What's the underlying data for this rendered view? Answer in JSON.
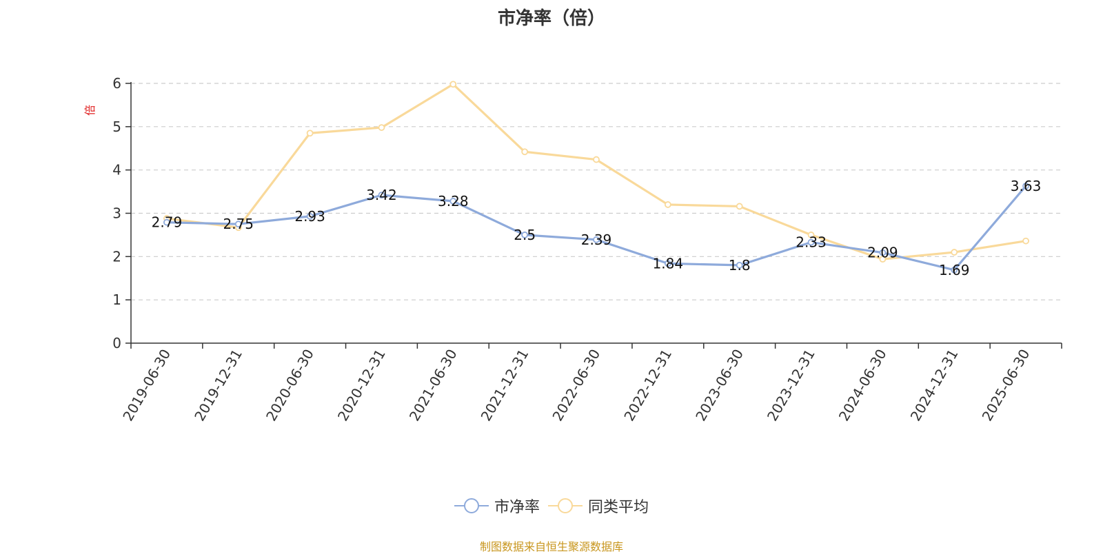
{
  "chart_data": {
    "type": "line",
    "title": "市净率（倍）",
    "ylabel": "倍",
    "xlabel": "",
    "ylim": [
      0,
      6
    ],
    "yticks": [
      "0",
      "1",
      "2",
      "3",
      "4",
      "5",
      "6"
    ],
    "categories": [
      "2019-06-30",
      "2019-12-31",
      "2020-06-30",
      "2020-12-31",
      "2021-06-30",
      "2021-12-31",
      "2022-06-30",
      "2022-12-31",
      "2023-06-30",
      "2023-12-31",
      "2024-06-30",
      "2024-12-31",
      "2025-06-30"
    ],
    "grid": true,
    "legend_position": "bottom",
    "series": [
      {
        "name": "市净率",
        "color": "#8eaadb",
        "values": [
          2.79,
          2.75,
          2.93,
          3.42,
          3.28,
          2.5,
          2.39,
          1.84,
          1.8,
          2.33,
          2.09,
          1.69,
          3.63
        ],
        "labels": [
          "2.79",
          "2.75",
          "2.93",
          "3.42",
          "3.28",
          "2.5",
          "2.39",
          "1.84",
          "1.8",
          "2.33",
          "2.09",
          "1.69",
          "3.63"
        ]
      },
      {
        "name": "同类平均",
        "color": "#f9d99a",
        "values": [
          2.88,
          2.67,
          4.85,
          4.98,
          5.98,
          4.42,
          4.24,
          3.2,
          3.16,
          2.5,
          1.94,
          2.1,
          2.36
        ]
      }
    ]
  },
  "source_note": "制图数据来自恒生聚源数据库"
}
